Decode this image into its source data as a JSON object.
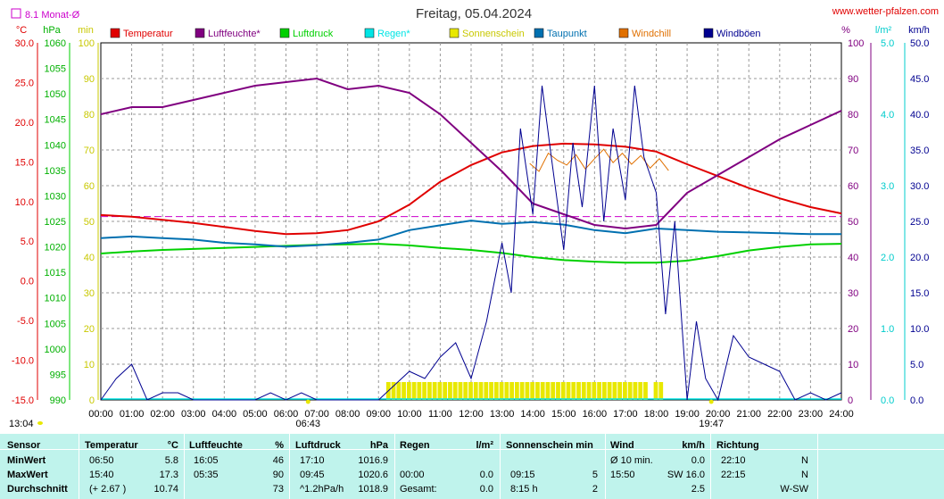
{
  "title": "Freitag, 05.04.2024",
  "source": "www.wetter-pfalzen.com",
  "monthly_avg_label": "8.1 Monat-Ø",
  "units": {
    "temp": "°C",
    "pressure": "hPa",
    "sun": "min",
    "humidity": "%",
    "rain": "l/m²",
    "wind": "km/h"
  },
  "legend": [
    {
      "name": "Temperatur",
      "color": "#e00000"
    },
    {
      "name": "Luftfeuchte*",
      "color": "#800080"
    },
    {
      "name": "Luftdruck",
      "color": "#00d000"
    },
    {
      "name": "Regen*",
      "color": "#00e5e5"
    },
    {
      "name": "Sonnenschein",
      "color": "#e8e800"
    },
    {
      "name": "Taupunkt",
      "color": "#0070b0"
    },
    {
      "name": "Windchill",
      "color": "#e07000"
    },
    {
      "name": "Windböen",
      "color": "#000090"
    }
  ],
  "sunrise": "06:43",
  "sunset": "19:47",
  "moon_time": "13:04",
  "chart_data": {
    "type": "line",
    "x_ticks": [
      "00:00",
      "01:00",
      "02:00",
      "03:00",
      "04:00",
      "05:00",
      "06:00",
      "07:00",
      "08:00",
      "09:00",
      "10:00",
      "11:00",
      "12:00",
      "13:00",
      "14:00",
      "15:00",
      "16:00",
      "17:00",
      "18:00",
      "19:00",
      "20:00",
      "21:00",
      "22:00",
      "23:00",
      "24:00"
    ],
    "axes": {
      "temp": {
        "ticks": [
          "30.0",
          "25.0",
          "20.0",
          "15.0",
          "10.0",
          "5.0",
          "0.0",
          "-5.0",
          "-10.0",
          "-15.0"
        ],
        "range": [
          -15,
          30
        ]
      },
      "pressure": {
        "ticks": [
          "1060",
          "1055",
          "1050",
          "1045",
          "1040",
          "1035",
          "1030",
          "1025",
          "1020",
          "1015",
          "1010",
          "1005",
          "1000",
          "995",
          "990"
        ],
        "range": [
          990,
          1060
        ]
      },
      "sun": {
        "ticks": [
          "100",
          "90",
          "80",
          "70",
          "60",
          "50",
          "40",
          "30",
          "20",
          "10",
          "0"
        ],
        "range": [
          0,
          100
        ]
      },
      "humidity": {
        "ticks": [
          "100",
          "90",
          "80",
          "70",
          "60",
          "50",
          "40",
          "30",
          "20",
          "10",
          "0"
        ],
        "range": [
          0,
          100
        ]
      },
      "rain": {
        "ticks": [
          "5.0",
          "4.0",
          "3.0",
          "2.0",
          "1.0",
          "0.0"
        ],
        "range": [
          0,
          5
        ]
      },
      "wind": {
        "ticks": [
          "50.0",
          "45.0",
          "40.0",
          "35.0",
          "30.0",
          "25.0",
          "20.0",
          "15.0",
          "10.0",
          "5.0",
          "0.0"
        ],
        "range": [
          0,
          50
        ]
      }
    },
    "monthly_avg_temp": 8.1,
    "series": [
      {
        "name": "Temperatur",
        "axis": "temp",
        "x": [
          0,
          1,
          2,
          3,
          4,
          5,
          6,
          7,
          8,
          9,
          10,
          11,
          12,
          13,
          14,
          15,
          16,
          17,
          18,
          19,
          20,
          21,
          22,
          23,
          24
        ],
        "values": [
          8.3,
          8.1,
          7.7,
          7.3,
          6.8,
          6.3,
          5.9,
          6.0,
          6.4,
          7.5,
          9.6,
          12.5,
          14.6,
          16.2,
          17.0,
          17.3,
          17.2,
          16.9,
          16.3,
          14.7,
          13.2,
          11.7,
          10.4,
          9.3,
          8.5
        ]
      },
      {
        "name": "Luftfeuchte*",
        "axis": "humidity",
        "x": [
          0,
          1,
          2,
          3,
          4,
          5,
          6,
          7,
          8,
          9,
          10,
          11,
          12,
          13,
          14,
          15,
          16,
          17,
          18,
          19,
          20,
          21,
          22,
          23,
          24
        ],
        "values": [
          80,
          82,
          82,
          84,
          86,
          88,
          89,
          90,
          87,
          88,
          86,
          80,
          72,
          64,
          55,
          52,
          49,
          48,
          49,
          58,
          63,
          68,
          73,
          77,
          81
        ]
      },
      {
        "name": "Luftdruck",
        "axis": "pressure",
        "x": [
          0,
          1,
          2,
          3,
          4,
          5,
          6,
          7,
          8,
          9,
          10,
          11,
          12,
          13,
          14,
          15,
          16,
          17,
          18,
          19,
          20,
          21,
          22,
          23,
          24
        ],
        "values": [
          1018.7,
          1019.1,
          1019.4,
          1019.6,
          1019.8,
          1020.0,
          1020.2,
          1020.4,
          1020.5,
          1020.6,
          1020.3,
          1019.8,
          1019.4,
          1018.8,
          1018.0,
          1017.4,
          1017.1,
          1016.9,
          1016.9,
          1017.3,
          1018.2,
          1019.3,
          1020.0,
          1020.5,
          1020.6
        ]
      },
      {
        "name": "Taupunkt",
        "axis": "temp",
        "x": [
          0,
          1,
          2,
          3,
          4,
          5,
          6,
          7,
          8,
          9,
          10,
          11,
          12,
          13,
          14,
          15,
          16,
          17,
          18,
          19,
          20,
          21,
          22,
          23,
          24
        ],
        "values": [
          5.4,
          5.6,
          5.4,
          5.2,
          4.8,
          4.6,
          4.3,
          4.5,
          4.8,
          5.2,
          6.4,
          7.0,
          7.6,
          7.2,
          7.4,
          7.1,
          6.4,
          6.0,
          6.6,
          6.4,
          6.2,
          6.1,
          6.0,
          5.9,
          5.9
        ]
      },
      {
        "name": "Windchill",
        "axis": "temp",
        "x": [
          13.9,
          14.2,
          14.5,
          14.8,
          15.1,
          15.4,
          15.7,
          16.0,
          16.3,
          16.6,
          16.9,
          17.2,
          17.5,
          17.8,
          18.1,
          18.4
        ],
        "values": [
          14.8,
          13.8,
          16.1,
          15.2,
          14.6,
          15.9,
          14.1,
          15.4,
          16.6,
          14.9,
          16.1,
          14.7,
          15.8,
          14.2,
          15.4,
          13.9
        ]
      },
      {
        "name": "Windböen",
        "axis": "wind",
        "x": [
          0,
          0.5,
          1,
          1.5,
          2,
          2.5,
          3,
          3.5,
          4,
          4.5,
          5,
          5.5,
          6,
          6.5,
          7,
          7.5,
          8,
          8.5,
          9,
          9.5,
          10,
          10.5,
          11,
          11.5,
          12,
          12.5,
          13,
          13.3,
          13.6,
          14,
          14.3,
          14.6,
          15,
          15.3,
          15.6,
          16,
          16.3,
          16.6,
          17,
          17.3,
          17.6,
          18,
          18.3,
          18.6,
          19,
          19.3,
          19.6,
          20,
          20.5,
          21,
          21.5,
          22,
          22.5,
          23,
          23.5,
          24
        ],
        "values": [
          0,
          3,
          5,
          0,
          1,
          1,
          0,
          0,
          0,
          0,
          0,
          1,
          0,
          1,
          0,
          0,
          0,
          0,
          0,
          2,
          4,
          3,
          6,
          8,
          3,
          11,
          22,
          15,
          38,
          26,
          44,
          34,
          21,
          36,
          27,
          44,
          25,
          38,
          28,
          44,
          34,
          29,
          12,
          25,
          0,
          11,
          3,
          0,
          9,
          6,
          5,
          4,
          0,
          1,
          0,
          1
        ]
      }
    ],
    "sunshine_minutes": {
      "start": "09:15",
      "end": "18:10",
      "max_per_10min": 5
    }
  },
  "table": {
    "headers": {
      "sensor": "Sensor",
      "temp": "Temperatur",
      "temp_unit": "°C",
      "hum": "Luftfeuchte",
      "hum_unit": "%",
      "press": "Luftdruck",
      "press_unit": "hPa",
      "rain": "Regen",
      "rain_unit": "l/m²",
      "sun": "Sonnenschein min",
      "wind": "Wind",
      "wind_unit": "km/h",
      "dir": "Richtung"
    },
    "rows": [
      {
        "label": "MinWert",
        "temp_time": "06:50",
        "temp": "5.8",
        "hum_time": "16:05",
        "hum": "46",
        "press_time": "17:10",
        "press": "1016.9",
        "rain_time": "",
        "rain": "",
        "sun_time": "",
        "sun": "",
        "wind_time": "Ø 10 min.",
        "wind": "0.0",
        "dir_time": "22:10",
        "dir": "N"
      },
      {
        "label": "MaxWert",
        "temp_time": "15:40",
        "temp": "17.3",
        "hum_time": "05:35",
        "hum": "90",
        "press_time": "09:45",
        "press": "1020.6",
        "rain_time": "00:00",
        "rain": "0.0",
        "sun_time": "09:15",
        "sun": "5",
        "wind_time": "15:50",
        "wind": "SW 16.0",
        "dir_time": "22:15",
        "dir": "N"
      },
      {
        "label": "Durchschnitt",
        "temp_time": "(+ 2.67 )",
        "temp": "10.74",
        "hum_time": "",
        "hum": "73",
        "press_time": "^1.2hPa/h",
        "press": "1018.9",
        "rain_time": "Gesamt:",
        "rain": "0.0",
        "sun_time": "8:15 h",
        "sun": "2",
        "wind_time": "",
        "wind": "2.5",
        "dir_time": "",
        "dir": "W-SW"
      }
    ]
  }
}
